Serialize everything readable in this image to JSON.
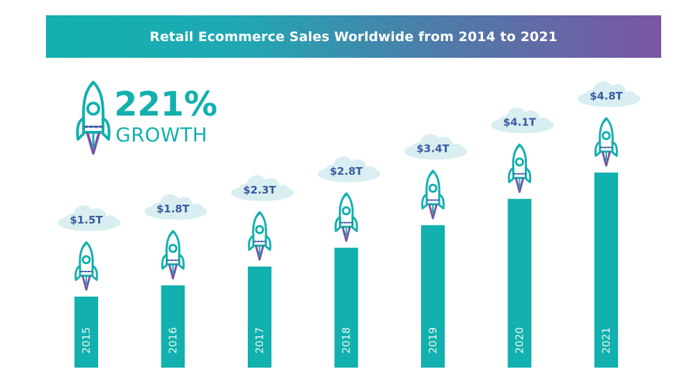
{
  "title": "Retail Ecommerce Sales Worldwide from 2014 to 2021",
  "growth": {
    "value": "221%",
    "label": "GROWTH"
  },
  "colors": {
    "bar": "#12b0ae",
    "gradient_start": "#12b0ae",
    "gradient_end": "#7a55a4",
    "label": "#3a5aa0",
    "cloud": "#d8eef0"
  },
  "chart_data": {
    "type": "bar",
    "categories": [
      "2015",
      "2016",
      "2017",
      "2018",
      "2019",
      "2020",
      "2021"
    ],
    "values": [
      1.5,
      1.8,
      2.3,
      2.8,
      3.4,
      4.1,
      4.8
    ],
    "value_labels": [
      "$1.5T",
      "$1.8T",
      "$2.3T",
      "$2.8T",
      "$3.4T",
      "$4.1T",
      "$4.8T"
    ],
    "title": "Retail Ecommerce Sales Worldwide from 2014 to 2021",
    "xlabel": "",
    "ylabel": "",
    "grid": false,
    "legend": "none"
  }
}
